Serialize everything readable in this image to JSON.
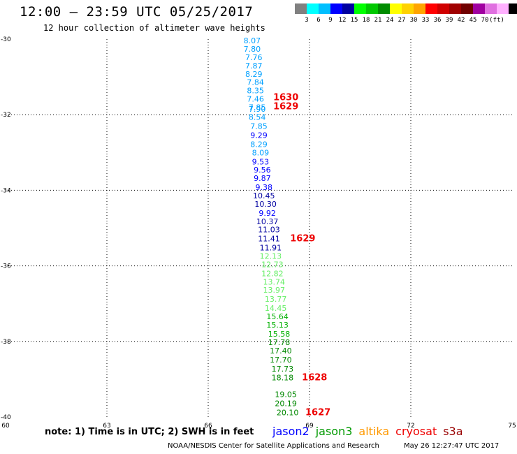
{
  "header": {
    "title": "12:00 – 23:59 UTC 05/25/2017",
    "subtitle": "12 hour collection of altimeter wave heights"
  },
  "colorbar": {
    "swatches": [
      "#808080",
      "#00ffff",
      "#00bfff",
      "#0000ff",
      "#0000a0",
      "#00ff00",
      "#00c800",
      "#008c00",
      "#ffff00",
      "#ffd200",
      "#ffa500",
      "#ff0000",
      "#d00000",
      "#a00000",
      "#700000",
      "#a000a0",
      "#e070e0",
      "#ffb0ff",
      "#000000"
    ],
    "labels": [
      "3",
      "6",
      "9",
      "12",
      "15",
      "18",
      "21",
      "24",
      "27",
      "30",
      "33",
      "36",
      "39",
      "42",
      "45",
      "70",
      "(ft)"
    ]
  },
  "note": "note: 1) Time is in UTC; 2) SWH is in feet",
  "legend": [
    {
      "name": "jason2",
      "color": "#0000ff"
    },
    {
      "name": "jason3",
      "color": "#009900"
    },
    {
      "name": "altika",
      "color": "#ff9900"
    },
    {
      "name": "cryosat",
      "color": "#ee0000"
    },
    {
      "name": "s3a",
      "color": "#990000"
    }
  ],
  "footer": {
    "credit": "NOAA/NESDIS Center for Satellite Applications and Research",
    "timestamp": "May 26 12:27:47 UTC 2017"
  },
  "chart_data": {
    "type": "scatter",
    "xlim": [
      60,
      75
    ],
    "ylim": [
      -40,
      -30
    ],
    "xticks": [
      60,
      63,
      66,
      69,
      72,
      75
    ],
    "yticks": [
      -30,
      -32,
      -34,
      -36,
      -38,
      -40
    ],
    "grid": "dotted",
    "wave_heights": [
      {
        "x": 67.3,
        "y": -30.04,
        "label": "8.07",
        "color": "#00a0ff"
      },
      {
        "x": 67.3,
        "y": -30.26,
        "label": "7.80",
        "color": "#00a0ff"
      },
      {
        "x": 67.35,
        "y": -30.48,
        "label": "7.76",
        "color": "#00a0ff"
      },
      {
        "x": 67.35,
        "y": -30.7,
        "label": "7.87",
        "color": "#00a0ff"
      },
      {
        "x": 67.35,
        "y": -30.92,
        "label": "8.29",
        "color": "#00a0ff"
      },
      {
        "x": 67.4,
        "y": -31.14,
        "label": "7.84",
        "color": "#00a0ff"
      },
      {
        "x": 67.4,
        "y": -31.36,
        "label": "8.35",
        "color": "#00a0ff"
      },
      {
        "x": 67.4,
        "y": -31.58,
        "label": "7.46",
        "color": "#00a0ff"
      },
      {
        "x": 67.45,
        "y": -31.8,
        "label": "7.85",
        "color": "#00a0ff"
      },
      {
        "x": 67.45,
        "y": -31.85,
        "label": "7.90",
        "color": "#00a0ff"
      },
      {
        "x": 67.45,
        "y": -32.06,
        "label": "8.54",
        "color": "#00a0ff"
      },
      {
        "x": 67.5,
        "y": -32.3,
        "label": "7.85",
        "color": "#00a0ff"
      },
      {
        "x": 67.5,
        "y": -32.54,
        "label": "9.29",
        "color": "#0000ff"
      },
      {
        "x": 67.5,
        "y": -32.78,
        "label": "8.29",
        "color": "#00a0ff"
      },
      {
        "x": 67.55,
        "y": -33.0,
        "label": "8.09",
        "color": "#00a0ff"
      },
      {
        "x": 67.55,
        "y": -33.24,
        "label": "9.53",
        "color": "#0000ff"
      },
      {
        "x": 67.6,
        "y": -33.46,
        "label": "9.56",
        "color": "#0000ff"
      },
      {
        "x": 67.6,
        "y": -33.68,
        "label": "9.87",
        "color": "#0000ff"
      },
      {
        "x": 67.65,
        "y": -33.92,
        "label": "9.38",
        "color": "#0000ff"
      },
      {
        "x": 67.65,
        "y": -34.14,
        "label": "10.45",
        "color": "#0000a0"
      },
      {
        "x": 67.7,
        "y": -34.36,
        "label": "10.30",
        "color": "#0000a0"
      },
      {
        "x": 67.75,
        "y": -34.6,
        "label": "9.92",
        "color": "#0000ff"
      },
      {
        "x": 67.75,
        "y": -34.82,
        "label": "10.37",
        "color": "#0000a0"
      },
      {
        "x": 67.8,
        "y": -35.04,
        "label": "11.03",
        "color": "#0000a0"
      },
      {
        "x": 67.8,
        "y": -35.28,
        "label": "11.41",
        "color": "#0000a0"
      },
      {
        "x": 67.85,
        "y": -35.52,
        "label": "11.91",
        "color": "#0000a0"
      },
      {
        "x": 67.85,
        "y": -35.74,
        "label": "12.13",
        "color": "#66ee66"
      },
      {
        "x": 67.9,
        "y": -35.96,
        "label": "12.73",
        "color": "#66ee66"
      },
      {
        "x": 67.9,
        "y": -36.2,
        "label": "12.82",
        "color": "#66ee66"
      },
      {
        "x": 67.95,
        "y": -36.42,
        "label": "13.74",
        "color": "#66ee66"
      },
      {
        "x": 67.95,
        "y": -36.64,
        "label": "13.97",
        "color": "#66ee66"
      },
      {
        "x": 68.0,
        "y": -36.88,
        "label": "13.77",
        "color": "#66ee66"
      },
      {
        "x": 68.0,
        "y": -37.12,
        "label": "14.45",
        "color": "#66ee66"
      },
      {
        "x": 68.05,
        "y": -37.34,
        "label": "15.64",
        "color": "#00b000"
      },
      {
        "x": 68.05,
        "y": -37.56,
        "label": "15.13",
        "color": "#00b000"
      },
      {
        "x": 68.1,
        "y": -37.8,
        "label": "15.58",
        "color": "#00b000"
      },
      {
        "x": 68.1,
        "y": -38.02,
        "label": "17.78",
        "color": "#008800"
      },
      {
        "x": 68.15,
        "y": -38.24,
        "label": "17.40",
        "color": "#008800"
      },
      {
        "x": 68.15,
        "y": -38.48,
        "label": "17.70",
        "color": "#008800"
      },
      {
        "x": 68.2,
        "y": -38.72,
        "label": "17.73",
        "color": "#008800"
      },
      {
        "x": 68.2,
        "y": -38.96,
        "label": "18.18",
        "color": "#008800"
      },
      {
        "x": 68.3,
        "y": -39.4,
        "label": "19.05",
        "color": "#008800"
      },
      {
        "x": 68.3,
        "y": -39.64,
        "label": "20.19",
        "color": "#008800"
      },
      {
        "x": 68.35,
        "y": -39.88,
        "label": "20.10",
        "color": "#008800"
      }
    ],
    "times": [
      {
        "x": 68.3,
        "y": -31.54,
        "label": "1630",
        "color": "#ee0000"
      },
      {
        "x": 68.3,
        "y": -31.78,
        "label": "1629",
        "color": "#ee0000"
      },
      {
        "x": 68.8,
        "y": -35.28,
        "label": "1629",
        "color": "#ee0000"
      },
      {
        "x": 69.15,
        "y": -38.96,
        "label": "1628",
        "color": "#ee0000"
      },
      {
        "x": 69.25,
        "y": -39.88,
        "label": "1627",
        "color": "#ee0000"
      }
    ]
  }
}
